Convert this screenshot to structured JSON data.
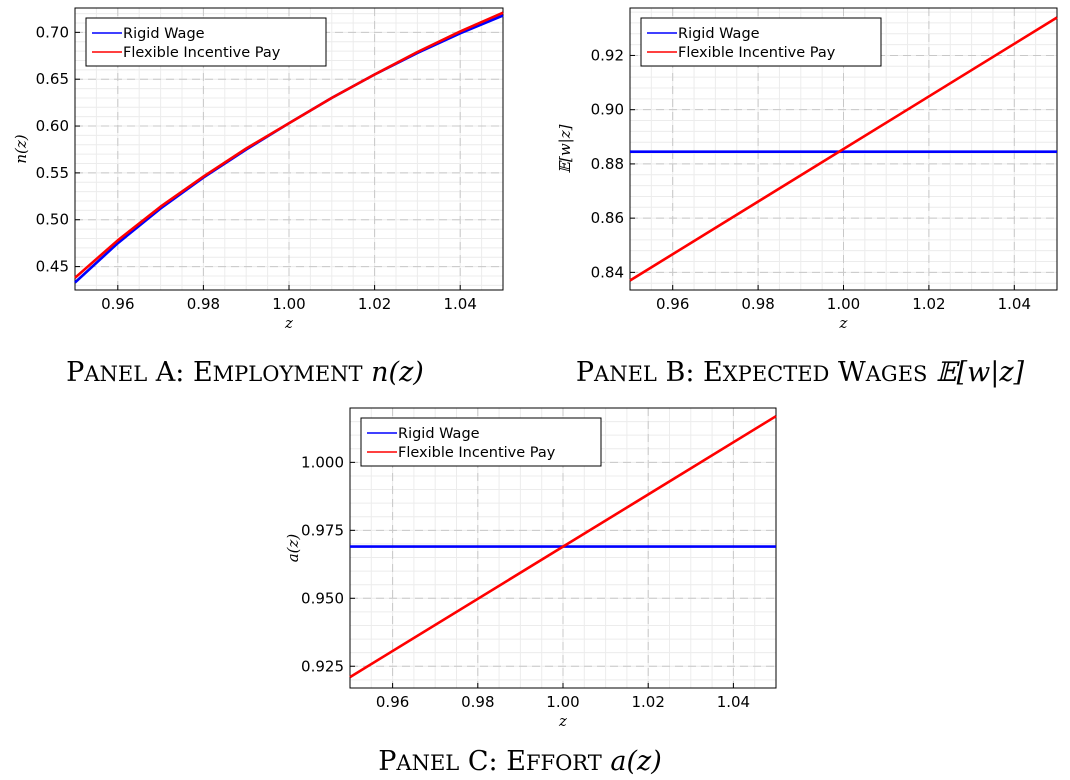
{
  "chart_data": [
    {
      "id": "A",
      "type": "line",
      "caption": {
        "prefix": "Panel A: Employment",
        "math": "n(z)"
      },
      "xlabel": "z",
      "ylabel": "n(z)",
      "xlim": [
        0.95,
        1.05
      ],
      "ylim": [
        0.425,
        0.726
      ],
      "xticks": [
        0.96,
        0.98,
        1.0,
        1.02,
        1.04
      ],
      "xtick_labels": [
        "0.96",
        "0.98",
        "1.00",
        "1.02",
        "1.04"
      ],
      "yticks": [
        0.45,
        0.5,
        0.55,
        0.6,
        0.65,
        0.7
      ],
      "ytick_labels": [
        "0.45",
        "0.50",
        "0.55",
        "0.60",
        "0.65",
        "0.70"
      ],
      "grid": true,
      "legend": "top-left",
      "x": [
        0.95,
        0.96,
        0.97,
        0.98,
        0.99,
        1.0,
        1.01,
        1.02,
        1.03,
        1.04,
        1.05
      ],
      "series": [
        {
          "name": "Rigid Wage",
          "color": "#0000ff",
          "values": [
            0.433,
            0.475,
            0.512,
            0.545,
            0.575,
            0.603,
            0.63,
            0.655,
            0.678,
            0.699,
            0.718
          ]
        },
        {
          "name": "Flexible Incentive Pay",
          "color": "#ff0000",
          "values": [
            0.438,
            0.478,
            0.514,
            0.546,
            0.576,
            0.603,
            0.63,
            0.655,
            0.679,
            0.701,
            0.721
          ]
        }
      ]
    },
    {
      "id": "B",
      "type": "line",
      "caption": {
        "prefix": "Panel B: Expected Wages",
        "math": "𝔼[w|z]"
      },
      "xlabel": "z",
      "ylabel": "𝔼[w|z]",
      "xlim": [
        0.95,
        1.05
      ],
      "ylim": [
        0.8335,
        0.9375
      ],
      "xticks": [
        0.96,
        0.98,
        1.0,
        1.02,
        1.04
      ],
      "xtick_labels": [
        "0.96",
        "0.98",
        "1.00",
        "1.02",
        "1.04"
      ],
      "yticks": [
        0.84,
        0.86,
        0.88,
        0.9,
        0.92
      ],
      "ytick_labels": [
        "0.84",
        "0.86",
        "0.88",
        "0.90",
        "0.92"
      ],
      "grid": true,
      "legend": "top-left",
      "x": [
        0.95,
        1.05
      ],
      "series": [
        {
          "name": "Rigid Wage",
          "color": "#0000ff",
          "values": [
            0.8845,
            0.8845
          ]
        },
        {
          "name": "Flexible Incentive Pay",
          "color": "#ff0000",
          "values": [
            0.837,
            0.934
          ]
        }
      ]
    },
    {
      "id": "C",
      "type": "line",
      "caption": {
        "prefix": "Panel C: Effort",
        "math": "a(z)"
      },
      "xlabel": "z",
      "ylabel": "a(z)",
      "xlim": [
        0.95,
        1.05
      ],
      "ylim": [
        0.917,
        1.02
      ],
      "xticks": [
        0.96,
        0.98,
        1.0,
        1.02,
        1.04
      ],
      "xtick_labels": [
        "0.96",
        "0.98",
        "1.00",
        "1.02",
        "1.04"
      ],
      "yticks": [
        0.925,
        0.95,
        0.975,
        1.0
      ],
      "ytick_labels": [
        "0.925",
        "0.950",
        "0.975",
        "1.000"
      ],
      "grid": true,
      "legend": "top-left",
      "x": [
        0.95,
        1.05
      ],
      "series": [
        {
          "name": "Rigid Wage",
          "color": "#0000ff",
          "values": [
            0.969,
            0.969
          ]
        },
        {
          "name": "Flexible Incentive Pay",
          "color": "#ff0000",
          "values": [
            0.921,
            1.017
          ]
        }
      ]
    }
  ]
}
